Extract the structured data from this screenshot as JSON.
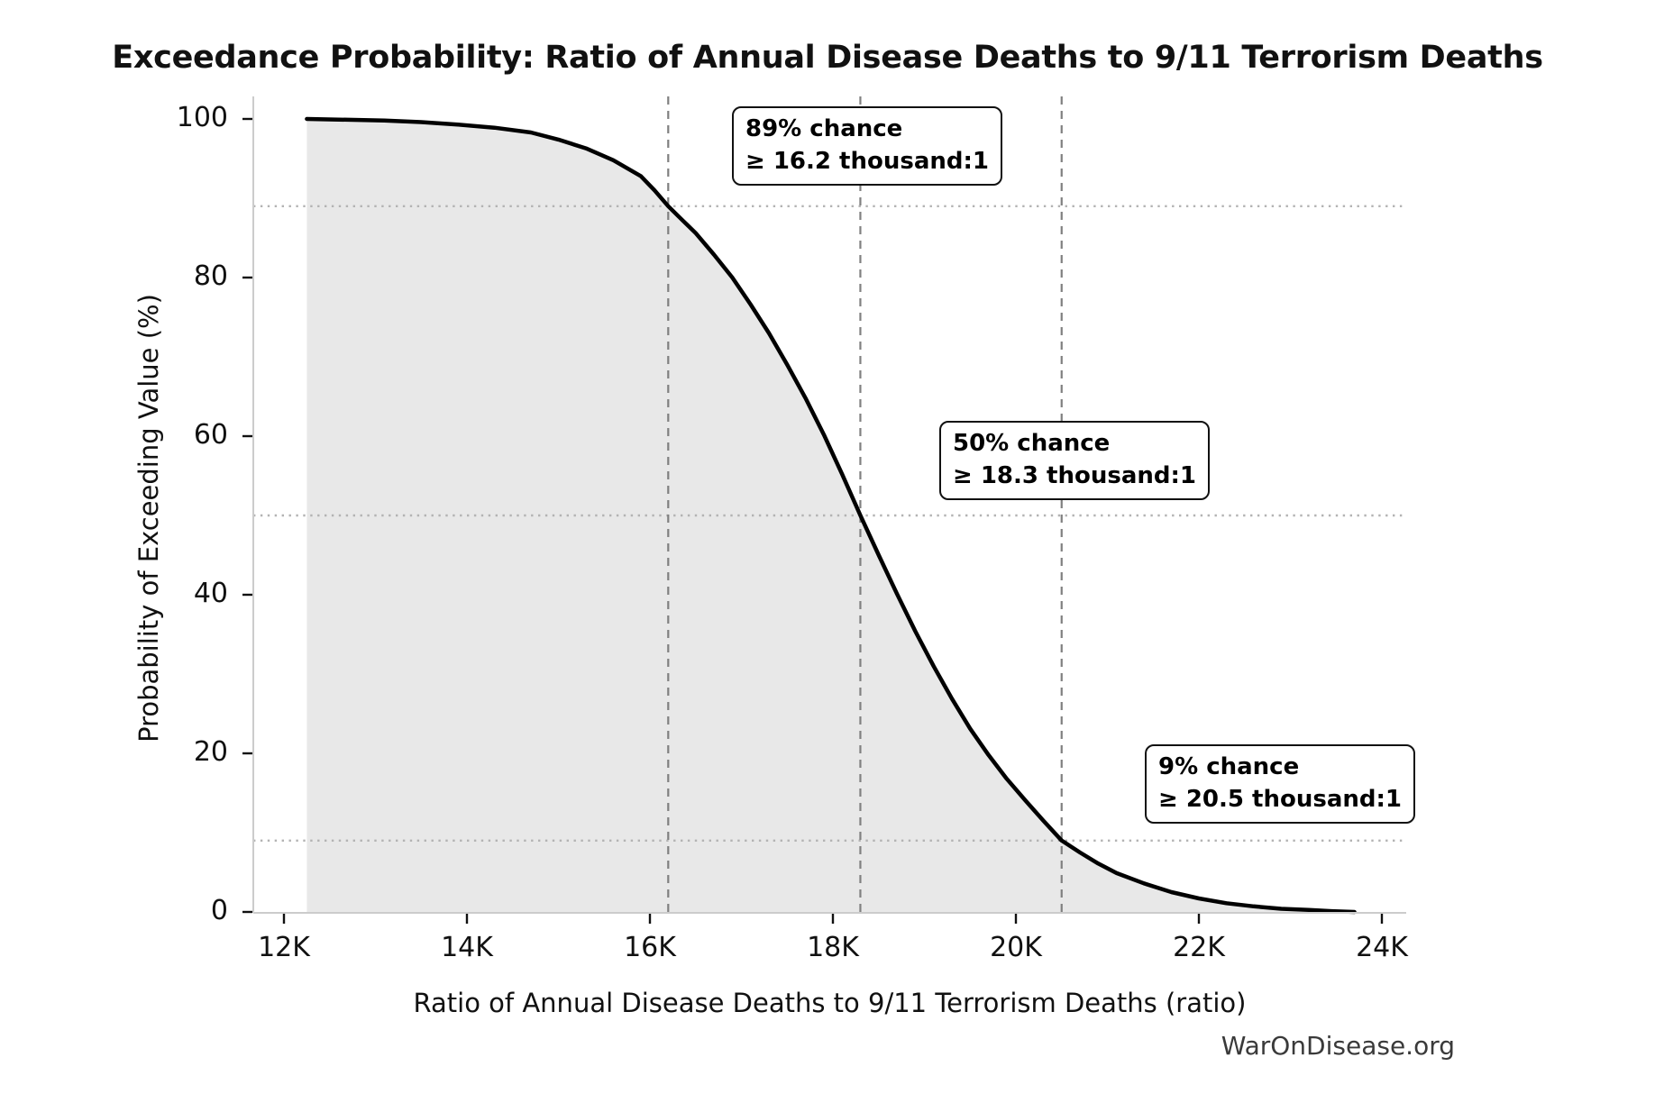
{
  "title": "Exceedance Probability: Ratio of Annual Disease Deaths to 9/11 Terrorism Deaths",
  "watermark": "WarOnDisease.org",
  "colors": {
    "curve": "#000000",
    "fill": "#e8e8e8",
    "dashed_line": "#808080",
    "dotted_line": "#b3b3b3",
    "spine": "#cccccc",
    "tick": "#111111",
    "annotation_border": "#111111",
    "annotation_bg": "#ffffff",
    "watermark": "#3a3a3a"
  },
  "chart_data": {
    "type": "area",
    "title": "Exceedance Probability: Ratio of Annual Disease Deaths to 9/11 Terrorism Deaths",
    "xlabel": "Ratio of Annual Disease Deaths to 9/11 Terrorism Deaths (ratio)",
    "ylabel": "Probability of Exceeding Value (%)",
    "xlim": [
      11650,
      24350
    ],
    "ylim": [
      0,
      100
    ],
    "grid": "reference-lines-only",
    "legend": "none",
    "x_ticks": [
      {
        "value": 12000,
        "label": "12K"
      },
      {
        "value": 14000,
        "label": "14K"
      },
      {
        "value": 16000,
        "label": "16K"
      },
      {
        "value": 18000,
        "label": "18K"
      },
      {
        "value": 20000,
        "label": "20K"
      },
      {
        "value": 22000,
        "label": "22K"
      },
      {
        "value": 24000,
        "label": "24K"
      }
    ],
    "y_ticks": [
      {
        "value": 0,
        "label": "0"
      },
      {
        "value": 20,
        "label": "20"
      },
      {
        "value": 40,
        "label": "40"
      },
      {
        "value": 60,
        "label": "60"
      },
      {
        "value": 80,
        "label": "80"
      },
      {
        "value": 100,
        "label": "100"
      }
    ],
    "series": [
      {
        "name": "exceedance-probability",
        "x": [
          12250,
          12700,
          13100,
          13500,
          13900,
          14300,
          14700,
          15000,
          15300,
          15600,
          15900,
          16050,
          16200,
          16350,
          16500,
          16700,
          16900,
          17100,
          17300,
          17500,
          17700,
          17900,
          18100,
          18300,
          18500,
          18700,
          18900,
          19100,
          19300,
          19500,
          19700,
          19900,
          20100,
          20300,
          20500,
          20700,
          20900,
          21100,
          21400,
          21700,
          22000,
          22300,
          22600,
          22900,
          23200,
          23450,
          23700
        ],
        "y": [
          100,
          99.9,
          99.8,
          99.6,
          99.3,
          98.9,
          98.3,
          97.4,
          96.3,
          94.8,
          92.8,
          91.0,
          89.0,
          87.3,
          85.6,
          82.9,
          80.0,
          76.6,
          73.0,
          69.0,
          64.8,
          60.2,
          55.2,
          50.0,
          45.0,
          40.1,
          35.4,
          31.0,
          26.9,
          23.1,
          19.8,
          16.8,
          14.1,
          11.5,
          9.0,
          7.5,
          6.1,
          4.9,
          3.6,
          2.5,
          1.7,
          1.1,
          0.7,
          0.4,
          0.25,
          0.1,
          0.0
        ]
      }
    ],
    "annotations": [
      {
        "line1": "89% chance",
        "line2": "≥ 16.2 thousand:1",
        "x": 16200,
        "probability_pct": 89
      },
      {
        "line1": "50% chance",
        "line2": "≥ 18.3 thousand:1",
        "x": 18300,
        "probability_pct": 50
      },
      {
        "line1": "9% chance",
        "line2": "≥ 20.5 thousand:1",
        "x": 20500,
        "probability_pct": 9
      }
    ]
  }
}
